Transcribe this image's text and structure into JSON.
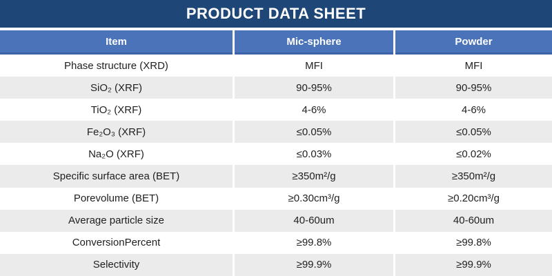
{
  "title": "PRODUCT DATA SHEET",
  "colors": {
    "title_bar": "#1E4778",
    "header_bg": "#4A73B9",
    "header_border": "#3A63A8",
    "row_alt_bg": "#EBEBEB",
    "row_bg": "#FFFFFF",
    "header_text": "#FFFFFF",
    "body_text": "#1F1F1F"
  },
  "table": {
    "columns": [
      "Item",
      "Mic-sphere",
      "Powder"
    ],
    "rows": [
      {
        "item": "Phase structure (XRD)",
        "mic_sphere": "MFI",
        "powder": "MFI"
      },
      {
        "item": "SiO₂ (XRF)",
        "mic_sphere": "90-95%",
        "powder": "90-95%"
      },
      {
        "item": "TiO₂ (XRF)",
        "mic_sphere": "4-6%",
        "powder": "4-6%"
      },
      {
        "item": "Fe₂O₃ (XRF)",
        "mic_sphere": "≤0.05%",
        "powder": "≤0.05%"
      },
      {
        "item": "Na₂O (XRF)",
        "mic_sphere": "≤0.03%",
        "powder": "≤0.02%"
      },
      {
        "item": "Specific surface area (BET)",
        "mic_sphere": "≥350m²/g",
        "powder": "≥350m²/g"
      },
      {
        "item": "Porevolume (BET)",
        "mic_sphere": "≥0.30cm³/g",
        "powder": "≥0.20cm³/g"
      },
      {
        "item": "Average particle size",
        "mic_sphere": "40-60um",
        "powder": "40-60um"
      },
      {
        "item": "ConversionPercent",
        "mic_sphere": "≥99.8%",
        "powder": "≥99.8%"
      },
      {
        "item": "Selectivity",
        "mic_sphere": "≥99.9%",
        "powder": "≥99.9%"
      }
    ]
  }
}
